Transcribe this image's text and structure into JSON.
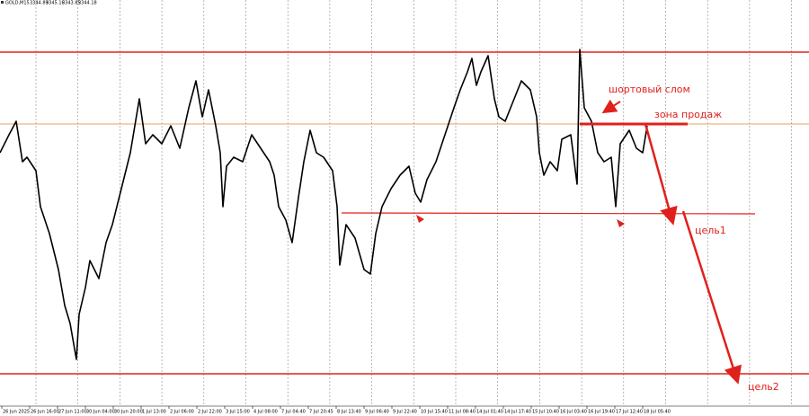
{
  "header": {
    "symbol": "GOLD,M15",
    "ohlc": [
      3344.89,
      3345.16,
      3343.85,
      3344.18
    ]
  },
  "x_axis": {
    "labels": [
      "26 Jun 2025",
      "26 Jun 16:00",
      "27 Jun 11:00",
      "30 Jun 04:00",
      "30 Jun 20:00",
      "1 Jul 13:00",
      "2 Jul 06:00",
      "2 Jul 22:00",
      "3 Jul 15:00",
      "4 Jul 08:00",
      "7 Jul 04:40",
      "7 Jul 20:45",
      "8 Jul 13:40",
      "9 Jul 06:40",
      "9 Jul 22:40",
      "10 Jul 15:40",
      "11 Jul 08:40",
      "14 Jul 01:40",
      "14 Jul 17:40",
      "15 Jul 10:40",
      "16 Jul 03:40",
      "16 Jul 19:40",
      "17 Jul 12:40",
      "18 Jul 05:40"
    ]
  },
  "annotations": {
    "short_break": "шортовый слом",
    "sell_zone": "зона продаж",
    "target1": "цель1",
    "target2": "цель2"
  }
}
